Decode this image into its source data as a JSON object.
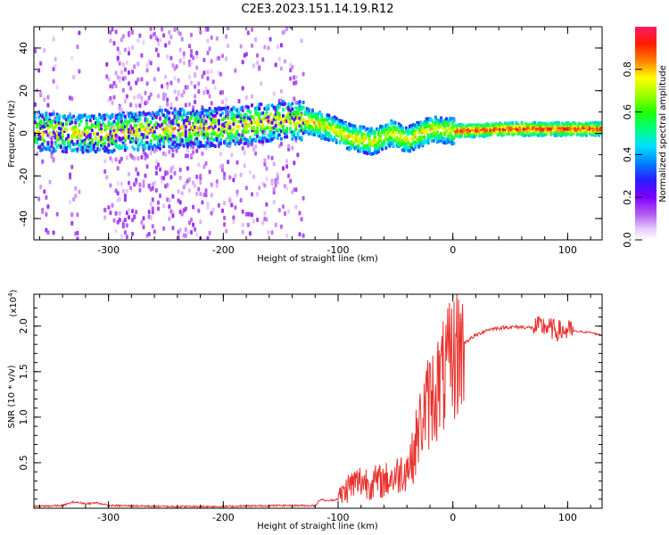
{
  "chart_data": [
    {
      "type": "heatmap",
      "title": "C2E3.2023.151.14.19.R12",
      "xlabel": "Height of straight line (km)",
      "ylabel": "Frequency (Hz)",
      "xlim": [
        -365,
        130
      ],
      "ylim": [
        -50,
        50
      ],
      "xticks": [
        -300,
        -200,
        -100,
        0,
        100
      ],
      "yticks": [
        -40,
        -20,
        0,
        20,
        40
      ],
      "colorbar": {
        "label": "Normalized spectral amplitude",
        "range": [
          0,
          1
        ],
        "ticks": [
          "0.0",
          "0.2",
          "0.4",
          "0.6",
          "0.8"
        ],
        "tick_values": [
          0.0,
          0.2,
          0.4,
          0.6,
          0.8
        ]
      },
      "center_line": {
        "x": [
          -365,
          -330,
          -300,
          -250,
          -200,
          -150,
          -130,
          -110,
          -90,
          -70,
          -55,
          -40,
          -20,
          0,
          50,
          100,
          130
        ],
        "y": [
          1,
          0,
          0,
          2,
          3,
          6,
          6,
          3,
          -2,
          -4,
          0,
          -3,
          2,
          1,
          2,
          2,
          2
        ]
      }
    },
    {
      "type": "line",
      "title": "",
      "xlabel": "Height of straight line (km)",
      "ylabel": "SNR (10 * v/v)",
      "exponent_label": "(x10",
      "exponent_power": "4",
      "exponent_close": ")",
      "xlim": [
        -365,
        130
      ],
      "ylim": [
        0,
        2.35
      ],
      "xticks": [
        -300,
        -200,
        -100,
        0,
        100
      ],
      "yticks": [
        "0.5",
        "1.0",
        "1.5",
        "2.0"
      ],
      "ytick_values": [
        0.5,
        1.0,
        1.5,
        2.0
      ],
      "series": [
        {
          "name": "SNR",
          "color": "#e8322e",
          "x": [
            -365,
            -340,
            -330,
            -320,
            -310,
            -300,
            -250,
            -200,
            -150,
            -120,
            -115,
            -110,
            -100,
            -90,
            -80,
            -70,
            -60,
            -50,
            -40,
            -35,
            -30,
            -25,
            -20,
            -15,
            -10,
            -5,
            0,
            5,
            10,
            20,
            30,
            40,
            50,
            60,
            70,
            80,
            90,
            100,
            110,
            120,
            130
          ],
          "values": [
            0.02,
            0.03,
            0.07,
            0.05,
            0.06,
            0.03,
            0.02,
            0.02,
            0.03,
            0.03,
            0.1,
            0.08,
            0.1,
            0.25,
            0.3,
            0.28,
            0.3,
            0.35,
            0.45,
            0.55,
            0.85,
            1.05,
            1.2,
            1.3,
            1.4,
            1.5,
            1.65,
            1.75,
            1.82,
            1.9,
            1.96,
            1.98,
            1.99,
            1.99,
            1.98,
            2.0,
            1.95,
            1.95,
            1.94,
            1.93,
            1.9
          ]
        }
      ]
    }
  ]
}
